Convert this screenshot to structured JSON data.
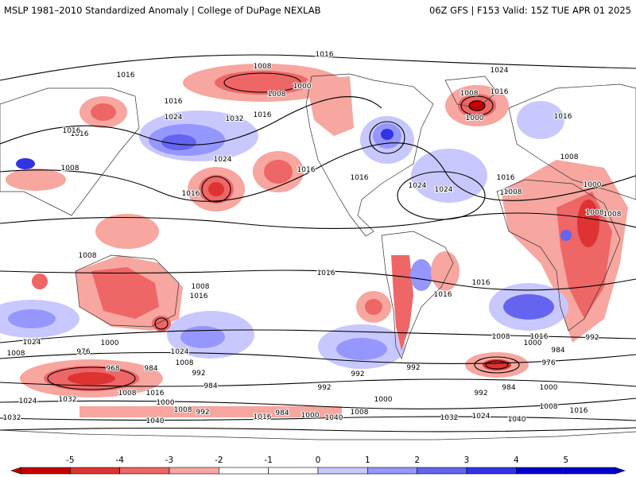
{
  "header": {
    "left": "MSLP 1981–2010 Standardized Anomaly | College of DuPage NEXLAB",
    "right": "06Z GFS | F153 Valid: 15Z TUE APR 01 2025"
  },
  "colorbar": {
    "ticks": [
      "-5",
      "-4",
      "-3",
      "-2",
      "-1",
      "0",
      "1",
      "2",
      "3",
      "4",
      "5"
    ],
    "colors": [
      "#c80000",
      "#dd3333",
      "#ee6666",
      "#f7a6a0",
      "#ffffff",
      "#ffffff",
      "#c8c8ff",
      "#9696ff",
      "#6464f0",
      "#3232e6",
      "#0000d2"
    ]
  },
  "map": {
    "contour_labels": [
      {
        "text": "1016"
      },
      {
        "text": "1008"
      },
      {
        "text": "1000"
      },
      {
        "text": "1008"
      },
      {
        "text": "1024"
      },
      {
        "text": "1016"
      },
      {
        "text": "1016"
      },
      {
        "text": "1024"
      },
      {
        "text": "1032"
      },
      {
        "text": "1016"
      },
      {
        "text": "1008"
      },
      {
        "text": "1000"
      },
      {
        "text": "1016"
      },
      {
        "text": "1016"
      },
      {
        "text": "1016"
      },
      {
        "text": "1008"
      },
      {
        "text": "1024"
      },
      {
        "text": "1016"
      },
      {
        "text": "1016"
      },
      {
        "text": "1016"
      },
      {
        "text": "1024"
      },
      {
        "text": "1016"
      },
      {
        "text": "1024"
      },
      {
        "text": "1008"
      },
      {
        "text": "1016"
      },
      {
        "text": "1008"
      },
      {
        "text": "1000"
      },
      {
        "text": "1008"
      },
      {
        "text": "1008"
      },
      {
        "text": "1008"
      },
      {
        "text": "1008"
      },
      {
        "text": "1016"
      },
      {
        "text": "1016"
      },
      {
        "text": "1016"
      },
      {
        "text": "1016"
      },
      {
        "text": "1008"
      },
      {
        "text": "1024"
      },
      {
        "text": "1000"
      },
      {
        "text": "1024"
      },
      {
        "text": "1008"
      },
      {
        "text": "1008"
      },
      {
        "text": "976"
      },
      {
        "text": "968"
      },
      {
        "text": "984"
      },
      {
        "text": "992"
      },
      {
        "text": "984"
      },
      {
        "text": "992"
      },
      {
        "text": "1008"
      },
      {
        "text": "1016"
      },
      {
        "text": "1032"
      },
      {
        "text": "1000"
      },
      {
        "text": "1024"
      },
      {
        "text": "1032"
      },
      {
        "text": "1040"
      },
      {
        "text": "1008"
      },
      {
        "text": "992"
      },
      {
        "text": "984"
      },
      {
        "text": "1016"
      },
      {
        "text": "1000"
      },
      {
        "text": "1040"
      },
      {
        "text": "1008"
      },
      {
        "text": "1000"
      },
      {
        "text": "992"
      },
      {
        "text": "992"
      },
      {
        "text": "1008"
      },
      {
        "text": "1016"
      },
      {
        "text": "1000"
      },
      {
        "text": "984"
      },
      {
        "text": "976"
      },
      {
        "text": "992"
      },
      {
        "text": "1000"
      },
      {
        "text": "984"
      },
      {
        "text": "992"
      },
      {
        "text": "1008"
      },
      {
        "text": "1016"
      },
      {
        "text": "1032"
      },
      {
        "text": "1024"
      },
      {
        "text": "1040"
      }
    ]
  }
}
